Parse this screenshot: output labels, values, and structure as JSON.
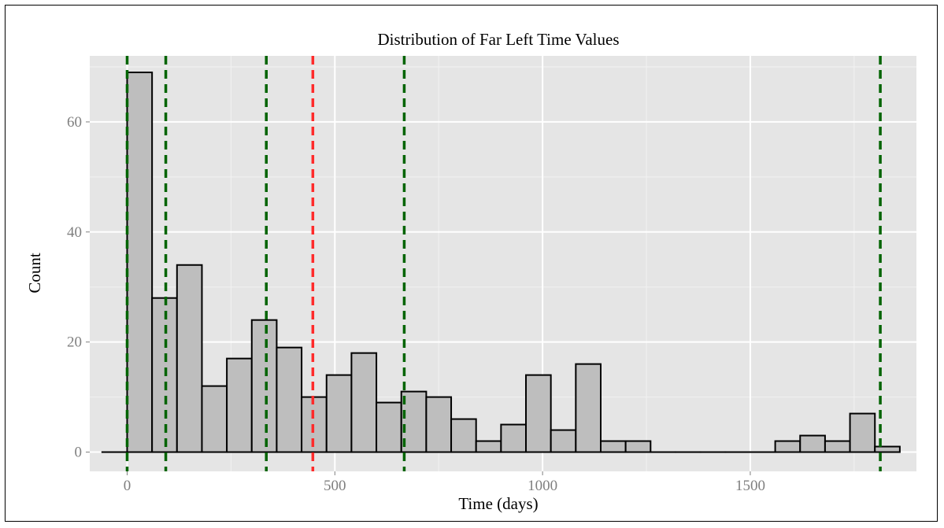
{
  "chart_data": {
    "type": "bar",
    "title": "Distribution of Far Left Time Values",
    "xlabel": "Time (days)",
    "ylabel": "Count",
    "xlim": [
      -90,
      1900
    ],
    "ylim": [
      -3.5,
      72
    ],
    "xticks": [
      0,
      500,
      1000,
      1500
    ],
    "yticks": [
      0,
      20,
      40,
      60
    ],
    "grid": true,
    "legend": "none",
    "bin_width": 60,
    "bins": [
      {
        "x0": -60,
        "count": 0
      },
      {
        "x0": 0,
        "count": 69
      },
      {
        "x0": 60,
        "count": 28
      },
      {
        "x0": 120,
        "count": 34
      },
      {
        "x0": 180,
        "count": 12
      },
      {
        "x0": 240,
        "count": 17
      },
      {
        "x0": 300,
        "count": 24
      },
      {
        "x0": 360,
        "count": 19
      },
      {
        "x0": 420,
        "count": 10
      },
      {
        "x0": 480,
        "count": 14
      },
      {
        "x0": 540,
        "count": 18
      },
      {
        "x0": 600,
        "count": 9
      },
      {
        "x0": 660,
        "count": 11
      },
      {
        "x0": 720,
        "count": 10
      },
      {
        "x0": 780,
        "count": 6
      },
      {
        "x0": 840,
        "count": 2
      },
      {
        "x0": 900,
        "count": 5
      },
      {
        "x0": 960,
        "count": 14
      },
      {
        "x0": 1020,
        "count": 4
      },
      {
        "x0": 1080,
        "count": 16
      },
      {
        "x0": 1140,
        "count": 2
      },
      {
        "x0": 1200,
        "count": 2
      },
      {
        "x0": 1260,
        "count": 0
      },
      {
        "x0": 1320,
        "count": 0
      },
      {
        "x0": 1380,
        "count": 0
      },
      {
        "x0": 1440,
        "count": 0
      },
      {
        "x0": 1500,
        "count": 0
      },
      {
        "x0": 1560,
        "count": 2
      },
      {
        "x0": 1620,
        "count": 3
      },
      {
        "x0": 1680,
        "count": 2
      },
      {
        "x0": 1740,
        "count": 7
      },
      {
        "x0": 1800,
        "count": 1
      }
    ],
    "vlines": [
      {
        "x": 0,
        "color": "#006400"
      },
      {
        "x": 93,
        "color": "#006400"
      },
      {
        "x": 335,
        "color": "#006400"
      },
      {
        "x": 447,
        "color": "#ff2a2a"
      },
      {
        "x": 667,
        "color": "#006400"
      },
      {
        "x": 1813,
        "color": "#006400"
      }
    ],
    "colors": {
      "panel": "#e5e5e5",
      "grid_major": "#ffffff",
      "grid_minor": "#f2f2f2",
      "bar_fill": "#bebebe",
      "bar_stroke": "#000000"
    }
  }
}
